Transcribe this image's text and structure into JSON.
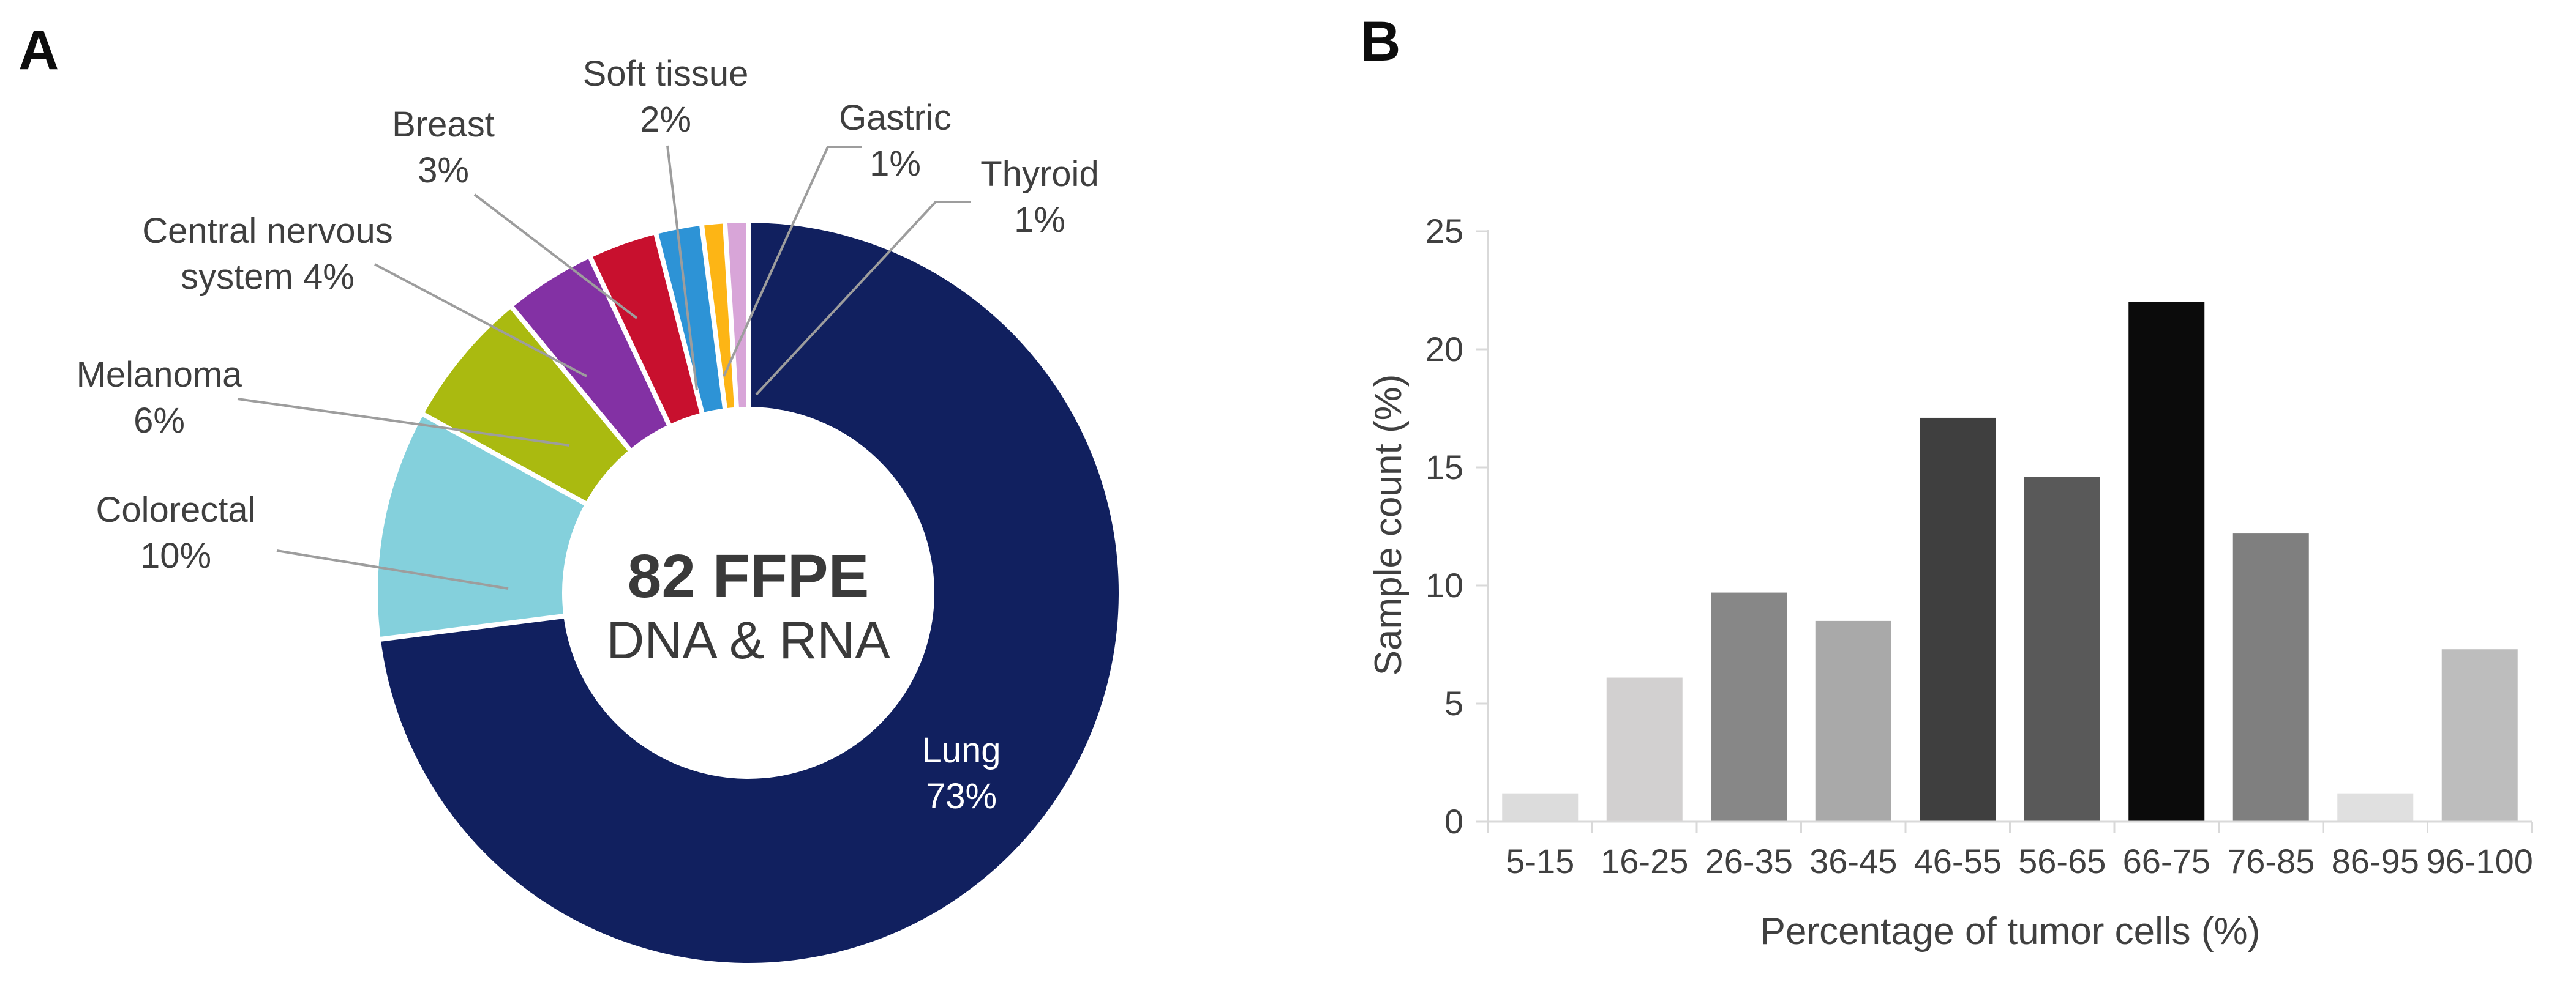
{
  "page": {
    "background": "#ffffff"
  },
  "panels": {
    "a": {
      "letter": "A"
    },
    "b": {
      "letter": "B"
    }
  },
  "chart_data": [
    {
      "type": "pie",
      "subtype": "donut",
      "start_angle_deg": 0,
      "direction": "clockwise",
      "center_label": {
        "line1": "82 FFPE",
        "line2": "DNA & RNA"
      },
      "slices": [
        {
          "label": "Lung",
          "value_pct": 73,
          "display": "73%",
          "color": "#11205f",
          "label_inside": true,
          "label_lines": [
            "Lung",
            "73%"
          ]
        },
        {
          "label": "Colorectal",
          "value_pct": 10,
          "display": "10%",
          "color": "#84d0dc",
          "label_inside": false,
          "label_lines": [
            "Colorectal",
            "10%"
          ]
        },
        {
          "label": "Melanoma",
          "value_pct": 6,
          "display": "6%",
          "color": "#aaba10",
          "label_inside": false,
          "label_lines": [
            "Melanoma",
            "6%"
          ]
        },
        {
          "label": "Central nervous system",
          "value_pct": 4,
          "display": "4%",
          "color": "#8331a4",
          "label_inside": false,
          "label_lines": [
            "Central nervous",
            "system 4%"
          ]
        },
        {
          "label": "Breast",
          "value_pct": 3,
          "display": "3%",
          "color": "#c8102e",
          "label_inside": false,
          "label_lines": [
            "Breast",
            "3%"
          ]
        },
        {
          "label": "Soft tissue",
          "value_pct": 2,
          "display": "2%",
          "color": "#2d93d6",
          "label_inside": false,
          "label_lines": [
            "Soft tissue",
            "2%"
          ]
        },
        {
          "label": "Gastric",
          "value_pct": 1,
          "display": "1%",
          "color": "#fdb515",
          "label_inside": false,
          "label_lines": [
            "Gastric",
            "1%"
          ]
        },
        {
          "label": "Thyroid",
          "value_pct": 1,
          "display": "1%",
          "color": "#d8a5d8",
          "label_inside": false,
          "label_lines": [
            "Thyroid",
            "1%"
          ]
        }
      ],
      "leader_line_color": "#9d9d9d",
      "label_text_color": "#3f3f3f",
      "inside_label_color": "#ffffff",
      "center_text_color": "#3a3a3a",
      "slice_gap_color": "#ffffff"
    },
    {
      "type": "bar",
      "categories": [
        "5-15",
        "16-25",
        "26-35",
        "36-45",
        "46-55",
        "56-65",
        "66-75",
        "76-85",
        "86-95",
        "96-100"
      ],
      "values": [
        1.2,
        6.1,
        9.7,
        8.5,
        17.1,
        14.6,
        22,
        12.2,
        1.2,
        7.3
      ],
      "bar_colors": [
        "#dcdcdc",
        "#d2d0d0",
        "#878787",
        "#a9a9a9",
        "#3f3f3f",
        "#595959",
        "#0b0b0b",
        "#7f7f7f",
        "#e0e0e0",
        "#bdbdbd"
      ],
      "xlabel": "Percentage of tumor cells (%)",
      "ylabel": "Sample count (%)",
      "ylim": [
        0,
        25
      ],
      "yticks": [
        0,
        5,
        10,
        15,
        20,
        25
      ],
      "grid": false,
      "legend": "none",
      "axis_color": "#d9d9d9",
      "tick_text_color": "#404040"
    }
  ]
}
